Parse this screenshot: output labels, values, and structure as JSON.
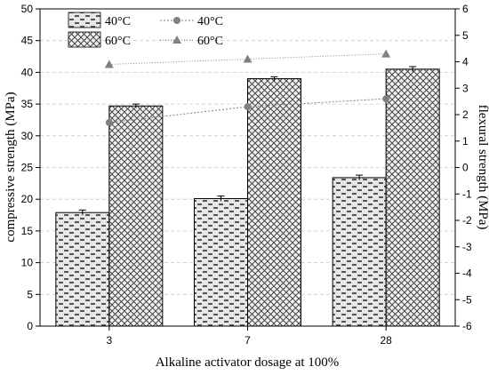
{
  "chart_data": {
    "type": "bar",
    "xlabel": "Alkaline activator dosage at 100%",
    "ylabel_left": "compressive strength (MPa)",
    "ylabel_right": "flexural strength (MPa)",
    "categories": [
      "3",
      "7",
      "28"
    ],
    "ylim_left": [
      0,
      50
    ],
    "yticks_left": [
      "0",
      "5",
      "10",
      "15",
      "20",
      "25",
      "30",
      "35",
      "40",
      "45",
      "50"
    ],
    "ylim_right": [
      -6,
      6
    ],
    "yticks_right": [
      "-6",
      "-5",
      "-4",
      "-3",
      "-2",
      "-1",
      "0",
      "1",
      "2",
      "3",
      "4",
      "5",
      "6"
    ],
    "grid": "horizontal dashed",
    "legend_position": "top-left",
    "bar_series": [
      {
        "name": "40°C",
        "pattern": "dashes",
        "values": [
          17.9,
          20.1,
          23.4
        ],
        "errors": [
          0.4,
          0.4,
          0.4
        ]
      },
      {
        "name": "60°C",
        "pattern": "crosshatch",
        "values": [
          34.7,
          39.0,
          40.5
        ],
        "errors": [
          0.3,
          0.3,
          0.4
        ]
      }
    ],
    "line_series": [
      {
        "name": "40°C",
        "marker": "circle",
        "axis": "right",
        "values": [
          1.7,
          2.3,
          2.6
        ]
      },
      {
        "name": "60°C",
        "marker": "triangle",
        "axis": "right",
        "values": [
          3.9,
          4.1,
          4.3
        ]
      }
    ],
    "colors": {
      "marker": "#808080",
      "bar_fill": "#e8e8e8",
      "pattern": "#5a5a5a",
      "grid": "#c8c8c8"
    }
  }
}
